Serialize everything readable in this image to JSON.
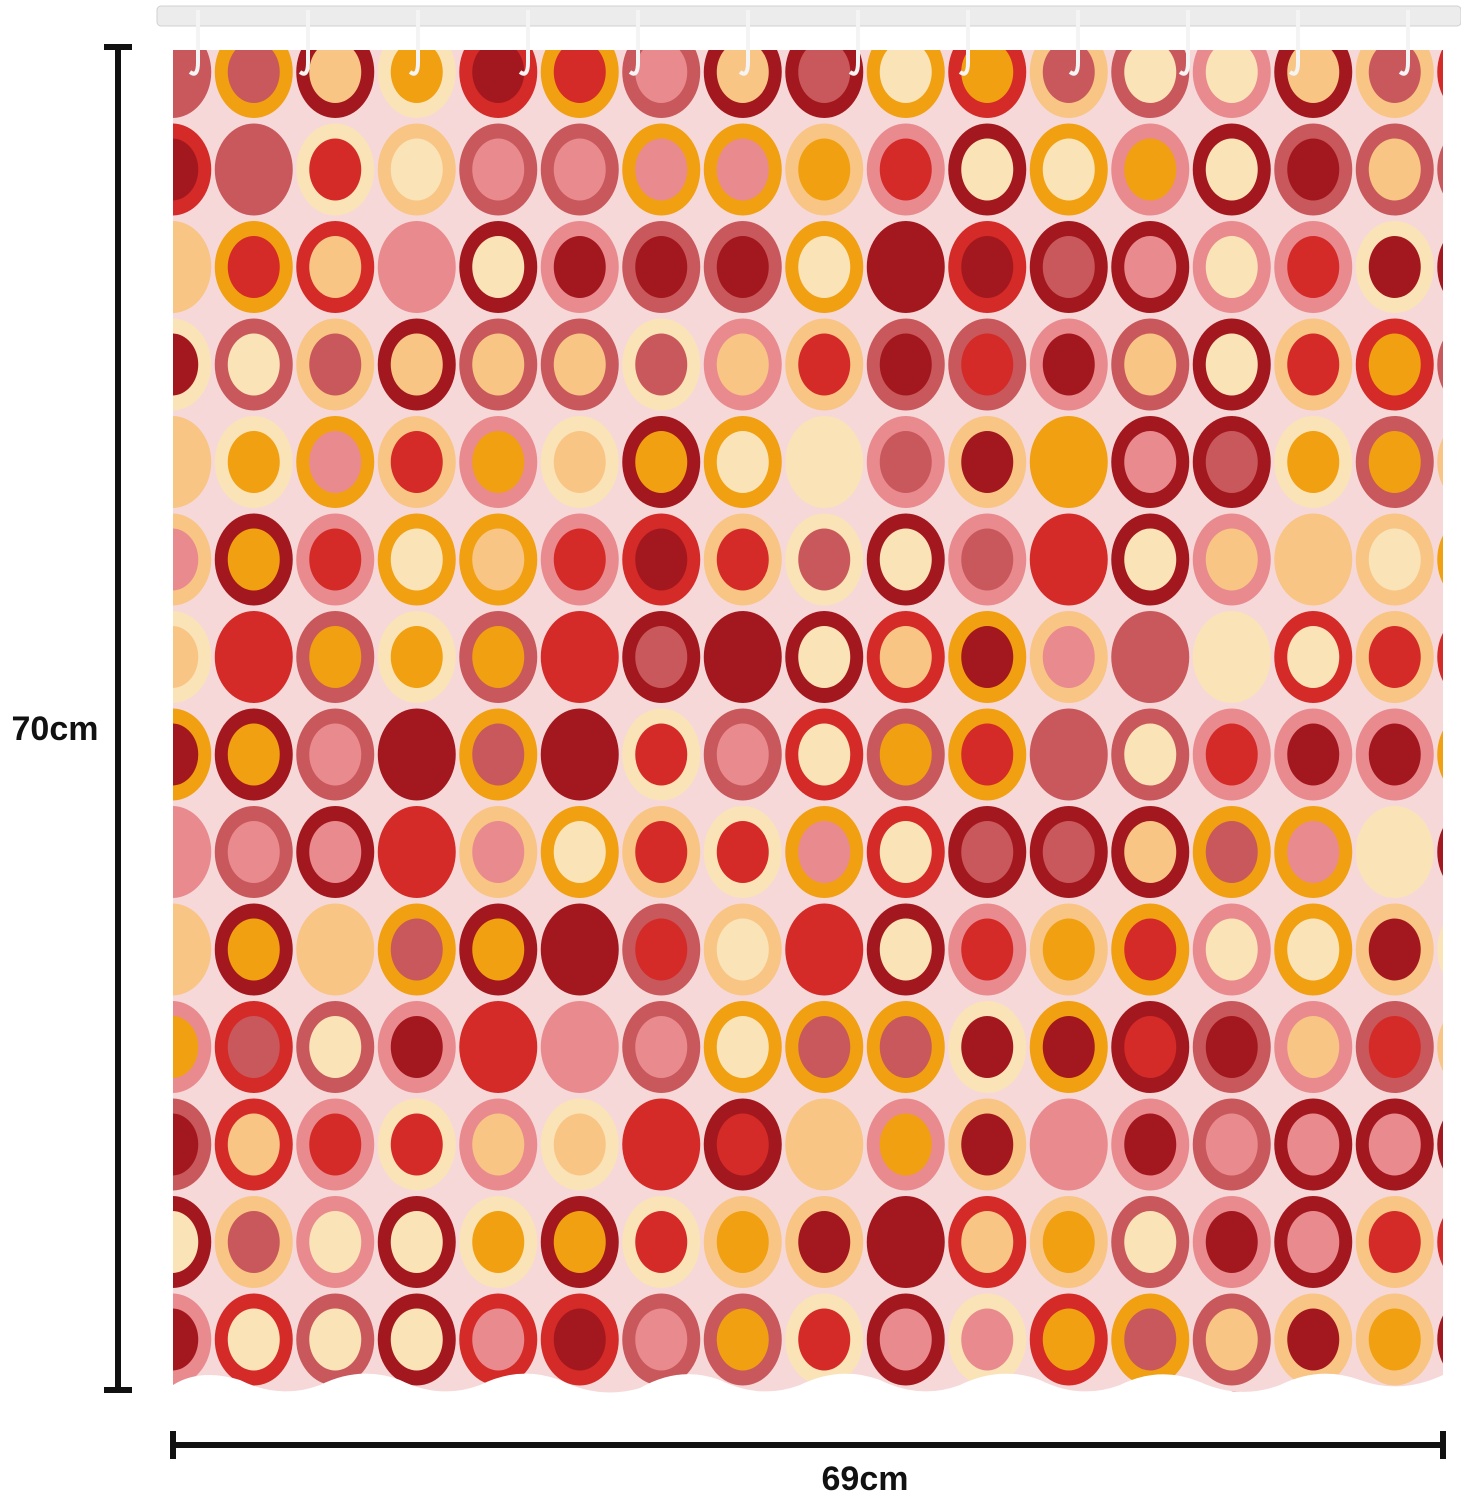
{
  "dimensions": {
    "height": "70cm",
    "width": "69cm"
  }
}
